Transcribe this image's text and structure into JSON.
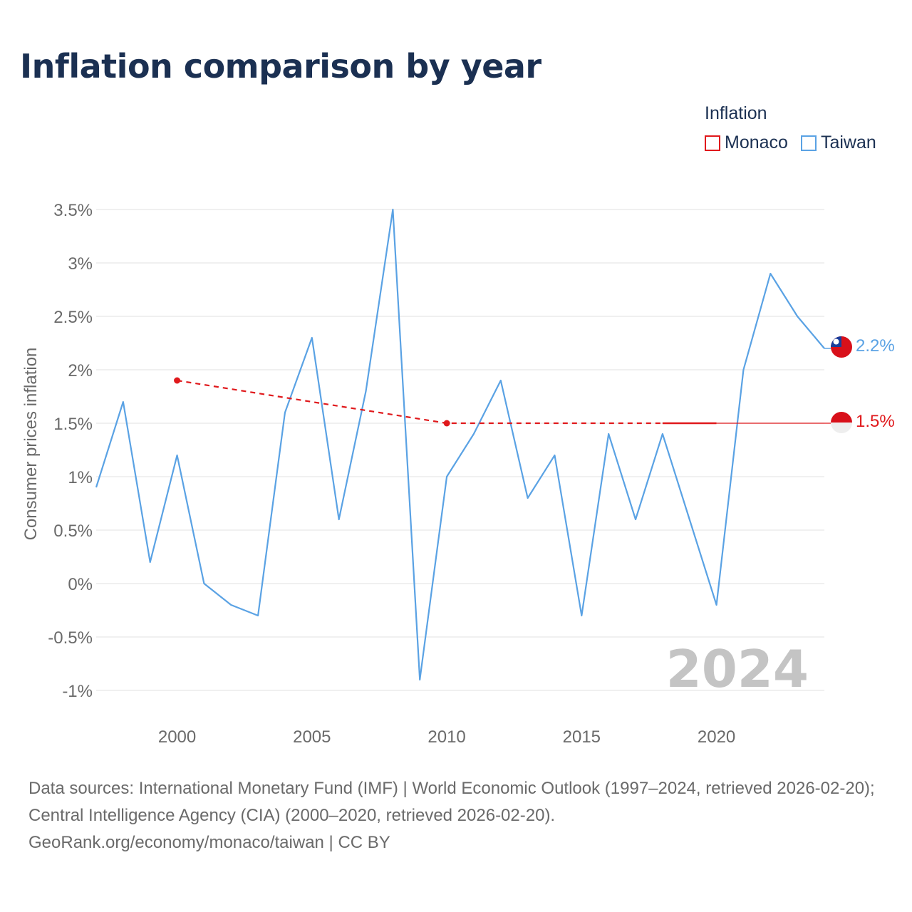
{
  "title": "Inflation comparison by year",
  "legend": {
    "title": "Inflation",
    "items": [
      {
        "label": "Monaco",
        "color": "#e0191c"
      },
      {
        "label": "Taiwan",
        "color": "#5aa2e4"
      }
    ]
  },
  "footer": {
    "sources": "Data sources: International Monetary Fund (IMF) | World Economic Outlook (1997–2024, retrieved 2026-02-20); Central Intelligence Agency (CIA) (2000–2020, retrieved 2026-02-20).",
    "credit": "GeoRank.org/economy/monaco/taiwan | CC BY"
  },
  "chart_data": {
    "type": "line",
    "ylabel": "Consumer prices inflation",
    "xlabel": "",
    "xlim": [
      1997,
      2024
    ],
    "ylim": [
      -1,
      3.5
    ],
    "x_ticks": [
      2000,
      2005,
      2010,
      2015,
      2020
    ],
    "y_ticks": [
      -1,
      -0.5,
      0,
      0.5,
      1,
      1.5,
      2,
      2.5,
      3,
      3.5
    ],
    "y_tick_labels": [
      "-1%",
      "-0.5%",
      "0%",
      "0.5%",
      "1%",
      "1.5%",
      "2%",
      "2.5%",
      "3%",
      "3.5%"
    ],
    "year_label": "2024",
    "series": [
      {
        "name": "Taiwan",
        "color": "#5aa2e4",
        "x": [
          1997,
          1998,
          1999,
          2000,
          2001,
          2002,
          2003,
          2004,
          2005,
          2006,
          2007,
          2008,
          2009,
          2010,
          2011,
          2012,
          2013,
          2014,
          2015,
          2016,
          2017,
          2018,
          2019,
          2020,
          2021,
          2022,
          2023,
          2024
        ],
        "values": [
          0.9,
          1.7,
          0.2,
          1.2,
          0.0,
          -0.2,
          -0.3,
          1.6,
          2.3,
          0.6,
          1.8,
          3.5,
          -0.9,
          1.0,
          1.4,
          1.9,
          0.8,
          1.2,
          -0.3,
          1.4,
          0.6,
          1.4,
          0.6,
          -0.2,
          2.0,
          2.9,
          2.5,
          2.2
        ],
        "end_label": "2.2%"
      },
      {
        "name": "Monaco",
        "color": "#e0191c",
        "x": [
          2000,
          2010,
          2018,
          2020,
          2024
        ],
        "values": [
          1.9,
          1.5,
          1.5,
          1.5,
          1.5
        ],
        "points": [
          2000,
          2010
        ],
        "end_label": "1.5%"
      }
    ]
  }
}
